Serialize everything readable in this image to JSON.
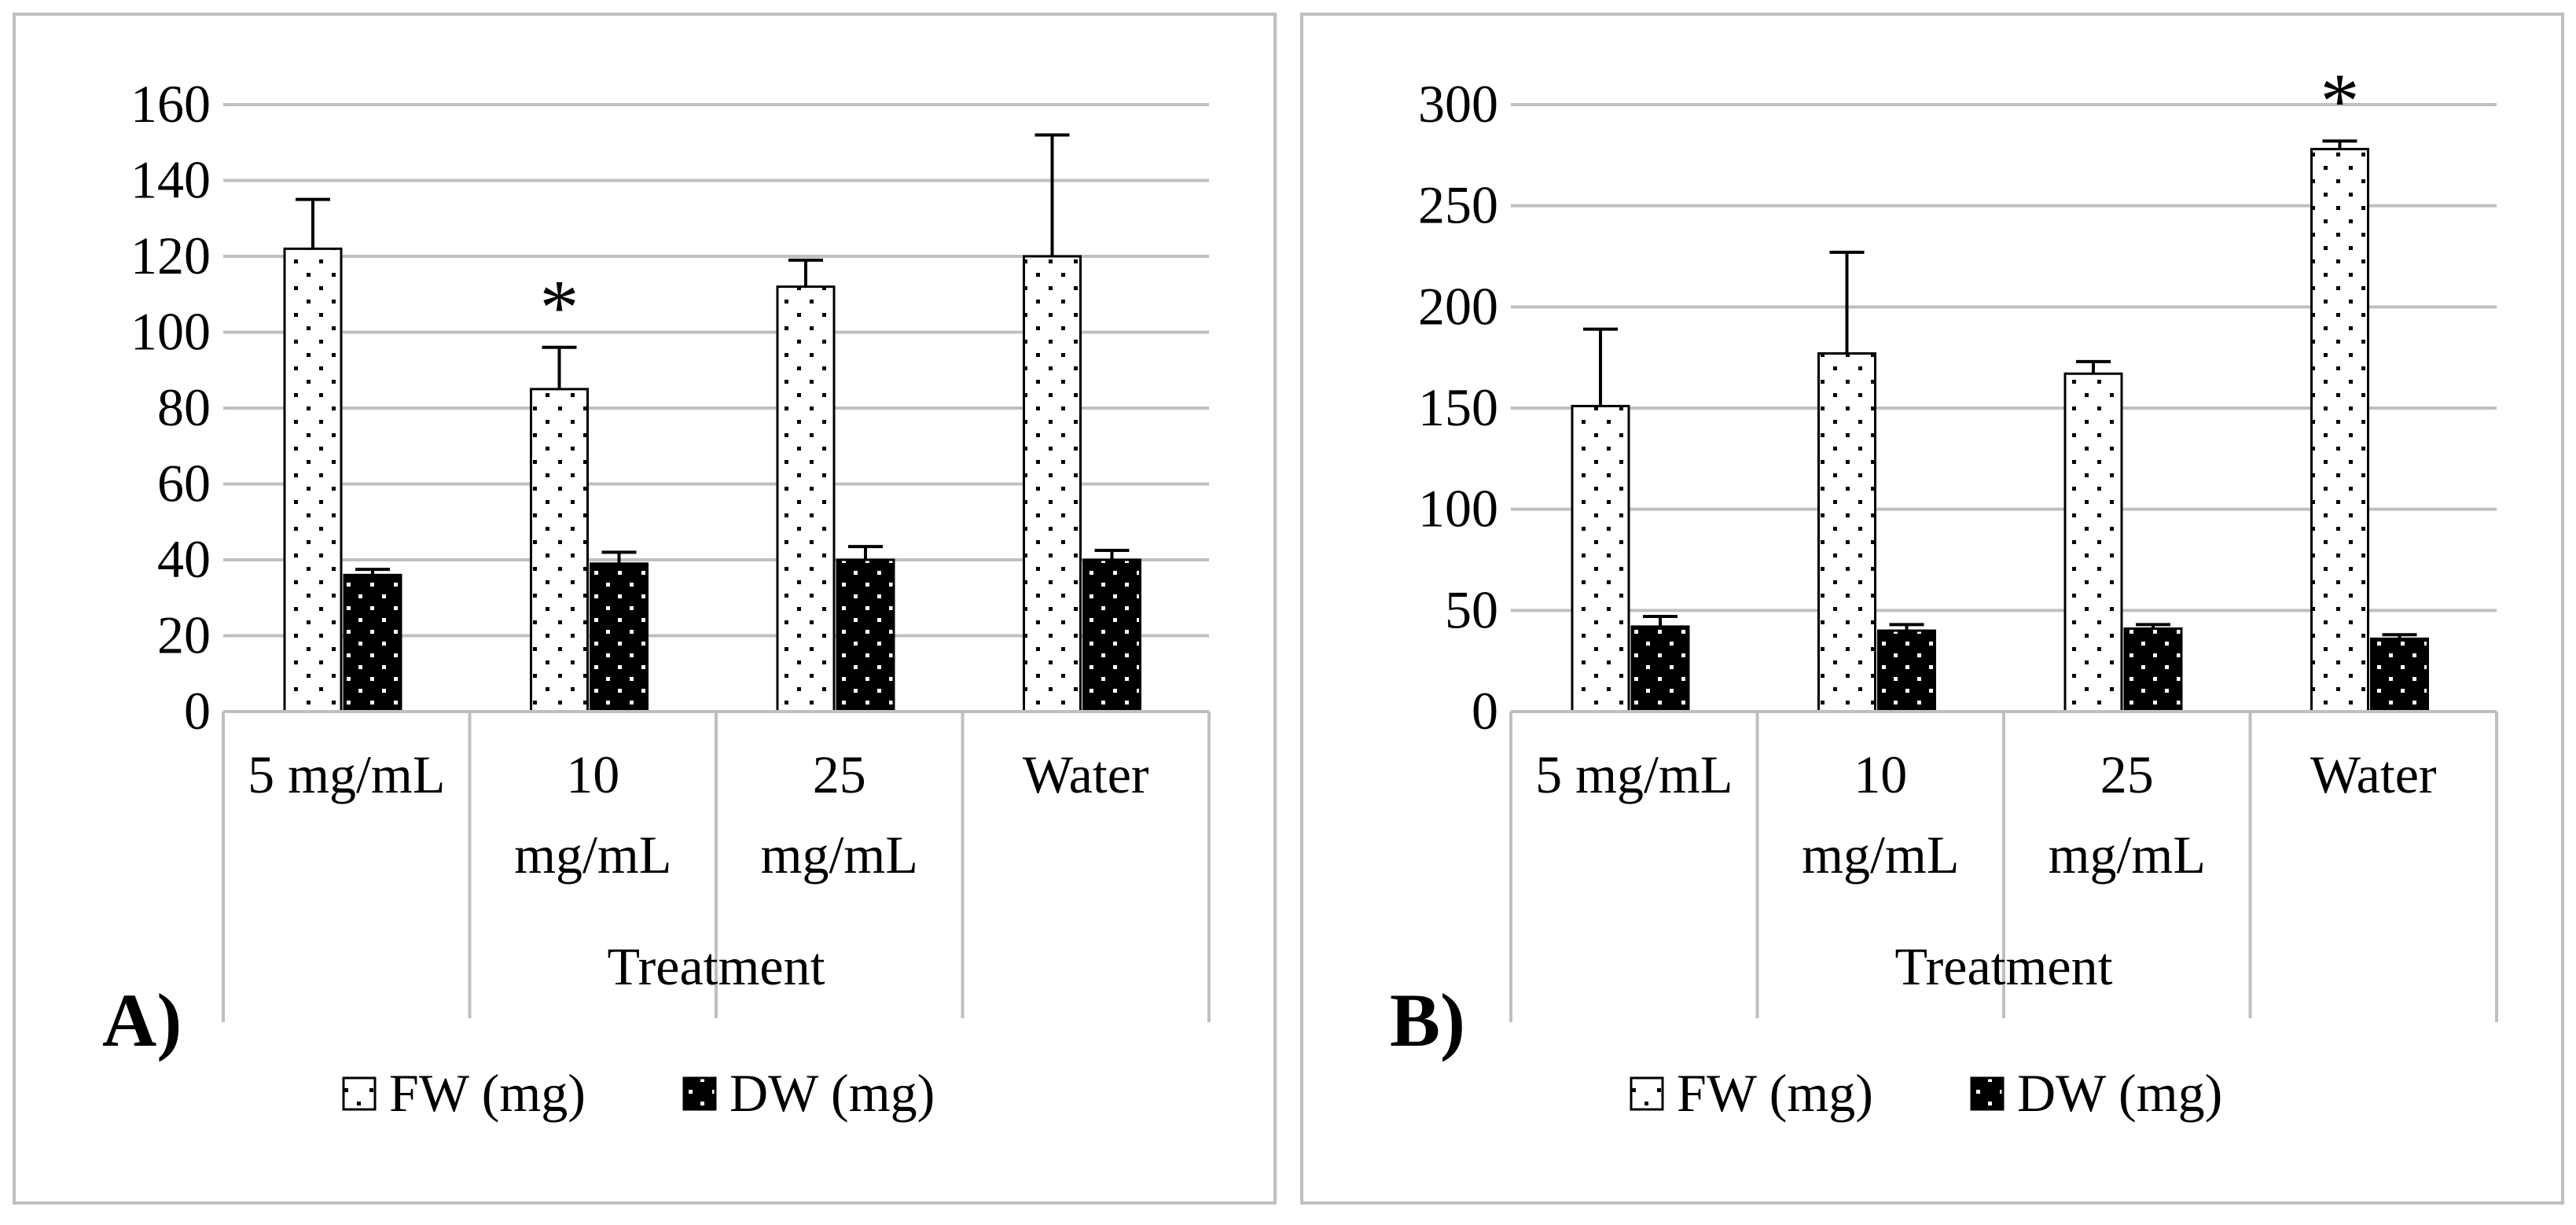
{
  "chart_data": [
    {
      "panel": "A)",
      "type": "bar",
      "categories": [
        [
          "5 mg/mL"
        ],
        [
          "10",
          "mg/mL"
        ],
        [
          "25",
          "mg/mL"
        ],
        [
          "Water"
        ]
      ],
      "series": [
        {
          "name": "FW (mg)",
          "values": [
            122,
            85,
            112,
            120
          ],
          "errors": [
            13,
            11,
            7,
            32
          ],
          "pattern": "dots-on-white"
        },
        {
          "name": "DW (mg)",
          "values": [
            36,
            39,
            40,
            40
          ],
          "errors": [
            1.5,
            3,
            3.5,
            2.5
          ],
          "pattern": "dots-on-black"
        }
      ],
      "significance": [
        {
          "category_index": 1,
          "label": "*"
        }
      ],
      "ylim": [
        0,
        160
      ],
      "yticks": [
        0,
        20,
        40,
        60,
        80,
        100,
        120,
        140,
        160
      ],
      "xlabel": "Treatment",
      "ylabel": "",
      "grid": true,
      "legend": "bottom"
    },
    {
      "panel": "B)",
      "type": "bar",
      "categories": [
        [
          "5 mg/mL"
        ],
        [
          "10",
          "mg/mL"
        ],
        [
          "25",
          "mg/mL"
        ],
        [
          "Water"
        ]
      ],
      "series": [
        {
          "name": "FW (mg)",
          "values": [
            151,
            177,
            167,
            278
          ],
          "errors": [
            38,
            50,
            6,
            4
          ],
          "pattern": "dots-on-white"
        },
        {
          "name": "DW (mg)",
          "values": [
            42,
            40,
            41,
            36
          ],
          "errors": [
            5,
            3,
            2,
            2
          ],
          "pattern": "dots-on-black"
        }
      ],
      "significance": [
        {
          "category_index": 3,
          "label": "*"
        }
      ],
      "ylim": [
        0,
        300
      ],
      "yticks": [
        0,
        50,
        100,
        150,
        200,
        250,
        300
      ],
      "xlabel": "Treatment",
      "ylabel": "",
      "grid": true,
      "legend": "bottom"
    }
  ]
}
